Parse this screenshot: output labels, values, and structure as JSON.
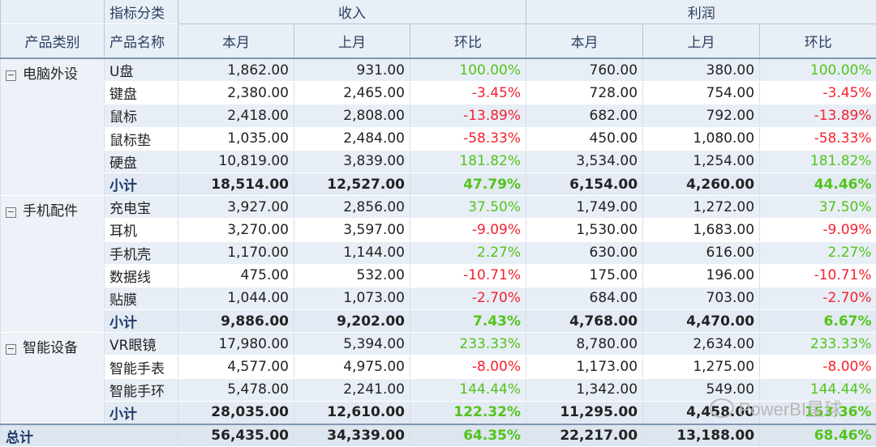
{
  "headers": {
    "category": "产品类别",
    "indicator": "指标分类",
    "product": "产品名称",
    "income": "收入",
    "profit": "利润",
    "this_month": "本月",
    "last_month": "上月",
    "mom": "环比"
  },
  "expand_glyph": "−",
  "subtotal_label": "小计",
  "total_label": "总计",
  "watermark": "PowerBI星球",
  "colors": {
    "positive": "#52c41a",
    "negative": "#f5222d",
    "header_bg": "#e9eff6"
  },
  "groups": [
    {
      "category": "电脑外设",
      "rows": [
        {
          "product": "U盘",
          "inc_cur": "1,862.00",
          "inc_prev": "931.00",
          "inc_mom": "100.00%",
          "pro_cur": "760.00",
          "pro_prev": "380.00",
          "pro_mom": "100.00%"
        },
        {
          "product": "键盘",
          "inc_cur": "2,380.00",
          "inc_prev": "2,465.00",
          "inc_mom": "-3.45%",
          "pro_cur": "728.00",
          "pro_prev": "754.00",
          "pro_mom": "-3.45%"
        },
        {
          "product": "鼠标",
          "inc_cur": "2,418.00",
          "inc_prev": "2,808.00",
          "inc_mom": "-13.89%",
          "pro_cur": "682.00",
          "pro_prev": "792.00",
          "pro_mom": "-13.89%"
        },
        {
          "product": "鼠标垫",
          "inc_cur": "1,035.00",
          "inc_prev": "2,484.00",
          "inc_mom": "-58.33%",
          "pro_cur": "450.00",
          "pro_prev": "1,080.00",
          "pro_mom": "-58.33%"
        },
        {
          "product": "硬盘",
          "inc_cur": "10,819.00",
          "inc_prev": "3,839.00",
          "inc_mom": "181.82%",
          "pro_cur": "3,534.00",
          "pro_prev": "1,254.00",
          "pro_mom": "181.82%"
        }
      ],
      "subtotal": {
        "inc_cur": "18,514.00",
        "inc_prev": "12,527.00",
        "inc_mom": "47.79%",
        "pro_cur": "6,154.00",
        "pro_prev": "4,260.00",
        "pro_mom": "44.46%"
      }
    },
    {
      "category": "手机配件",
      "rows": [
        {
          "product": "充电宝",
          "inc_cur": "3,927.00",
          "inc_prev": "2,856.00",
          "inc_mom": "37.50%",
          "pro_cur": "1,749.00",
          "pro_prev": "1,272.00",
          "pro_mom": "37.50%"
        },
        {
          "product": "耳机",
          "inc_cur": "3,270.00",
          "inc_prev": "3,597.00",
          "inc_mom": "-9.09%",
          "pro_cur": "1,530.00",
          "pro_prev": "1,683.00",
          "pro_mom": "-9.09%"
        },
        {
          "product": "手机壳",
          "inc_cur": "1,170.00",
          "inc_prev": "1,144.00",
          "inc_mom": "2.27%",
          "pro_cur": "630.00",
          "pro_prev": "616.00",
          "pro_mom": "2.27%"
        },
        {
          "product": "数据线",
          "inc_cur": "475.00",
          "inc_prev": "532.00",
          "inc_mom": "-10.71%",
          "pro_cur": "175.00",
          "pro_prev": "196.00",
          "pro_mom": "-10.71%"
        },
        {
          "product": "贴膜",
          "inc_cur": "1,044.00",
          "inc_prev": "1,073.00",
          "inc_mom": "-2.70%",
          "pro_cur": "684.00",
          "pro_prev": "703.00",
          "pro_mom": "-2.70%"
        }
      ],
      "subtotal": {
        "inc_cur": "9,886.00",
        "inc_prev": "9,202.00",
        "inc_mom": "7.43%",
        "pro_cur": "4,768.00",
        "pro_prev": "4,470.00",
        "pro_mom": "6.67%"
      }
    },
    {
      "category": "智能设备",
      "rows": [
        {
          "product": "VR眼镜",
          "inc_cur": "17,980.00",
          "inc_prev": "5,394.00",
          "inc_mom": "233.33%",
          "pro_cur": "8,780.00",
          "pro_prev": "2,634.00",
          "pro_mom": "233.33%"
        },
        {
          "product": "智能手表",
          "inc_cur": "4,577.00",
          "inc_prev": "4,975.00",
          "inc_mom": "-8.00%",
          "pro_cur": "1,173.00",
          "pro_prev": "1,275.00",
          "pro_mom": "-8.00%"
        },
        {
          "product": "智能手环",
          "inc_cur": "5,478.00",
          "inc_prev": "2,241.00",
          "inc_mom": "144.44%",
          "pro_cur": "1,342.00",
          "pro_prev": "549.00",
          "pro_mom": "144.44%"
        }
      ],
      "subtotal": {
        "inc_cur": "28,035.00",
        "inc_prev": "12,610.00",
        "inc_mom": "122.32%",
        "pro_cur": "11,295.00",
        "pro_prev": "4,458.00",
        "pro_mom": "153.36%"
      }
    }
  ],
  "total": {
    "inc_cur": "56,435.00",
    "inc_prev": "34,339.00",
    "inc_mom": "64.35%",
    "pro_cur": "22,217.00",
    "pro_prev": "13,188.00",
    "pro_mom": "68.46%"
  }
}
